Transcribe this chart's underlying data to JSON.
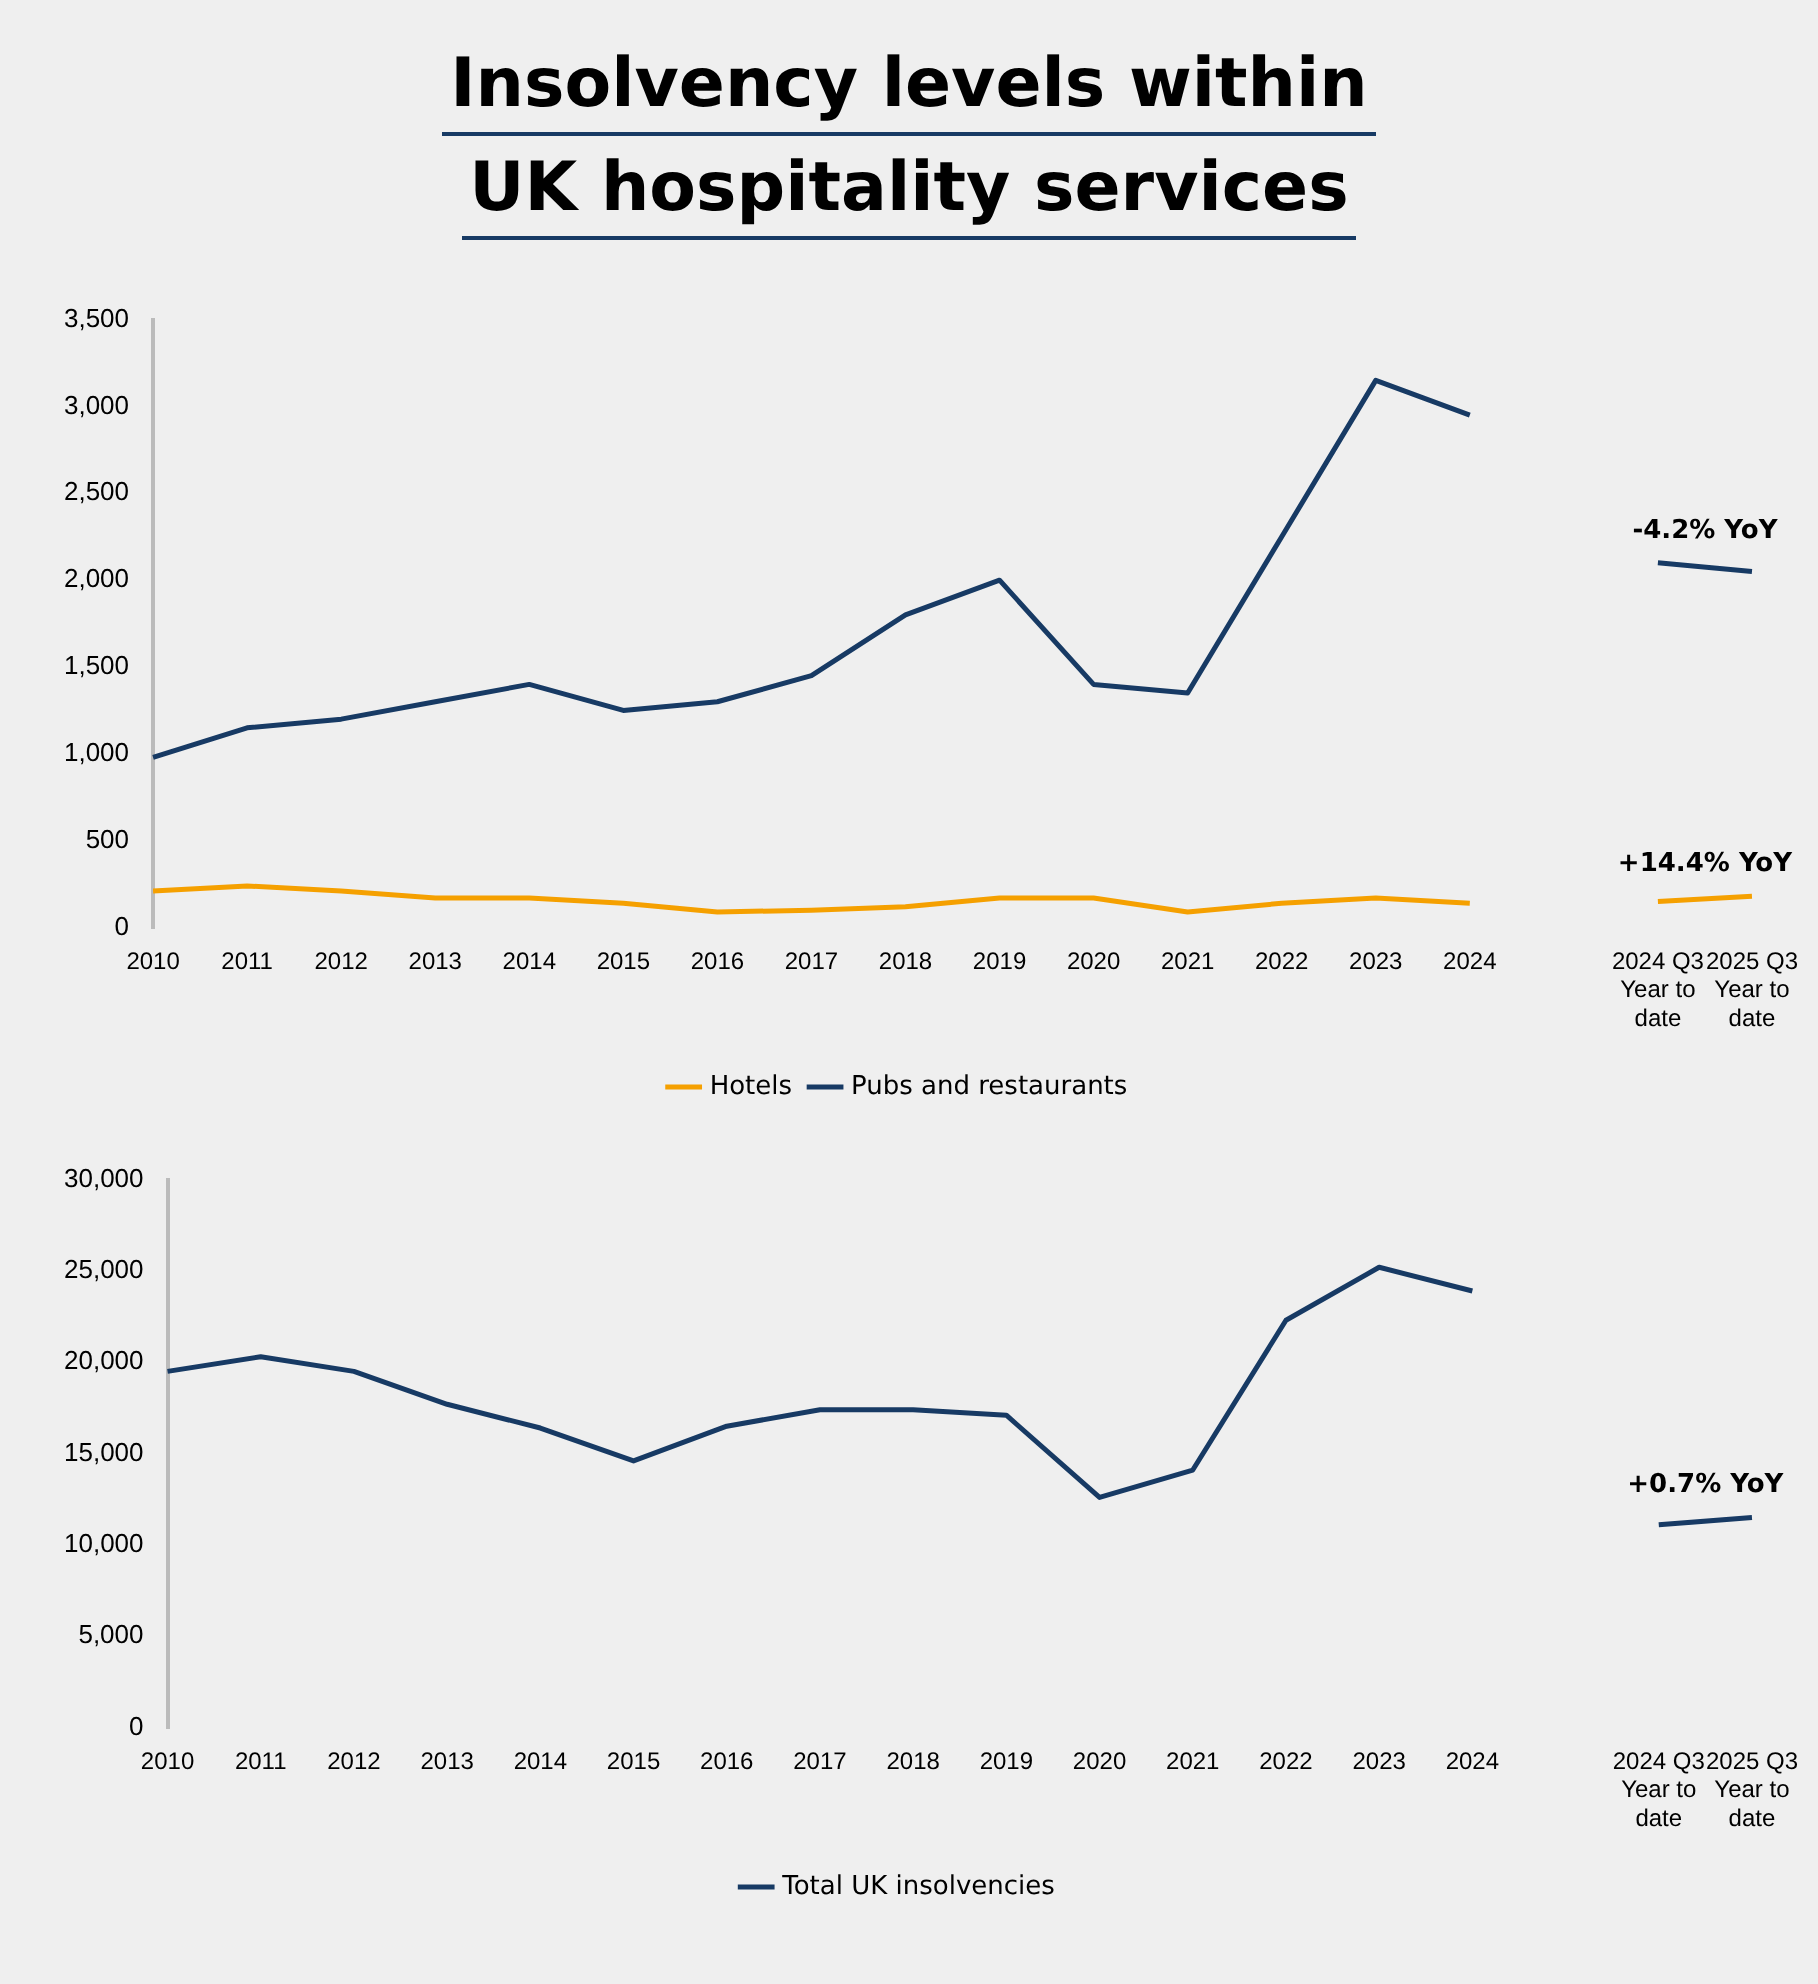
{
  "chart_data": [
    {
      "type": "line",
      "title": "Insolvency levels within UK hospitality services",
      "categories": [
        "2010",
        "2011",
        "2012",
        "2013",
        "2014",
        "2015",
        "2016",
        "2017",
        "2018",
        "2019",
        "2020",
        "2021",
        "2022",
        "2023",
        "2024",
        null,
        "2024 Q3\nYear to\ndate",
        "2025 Q3\nYear to\ndate"
      ],
      "series": [
        {
          "name": "Hotels",
          "color": "#f5a000",
          "values": [
            210,
            240,
            210,
            170,
            170,
            140,
            90,
            100,
            120,
            170,
            170,
            90,
            140,
            170,
            140,
            null,
            150,
            180
          ]
        },
        {
          "name": "Pubs and restaurants",
          "color": "#173a64",
          "values": [
            980,
            1150,
            1200,
            1300,
            1400,
            1250,
            1300,
            1450,
            1800,
            2000,
            1400,
            1350,
            2250,
            3150,
            2950,
            null,
            2100,
            2050
          ]
        }
      ],
      "ylim": [
        0,
        3500
      ],
      "yticks": [
        {
          "value": 0,
          "label": "0"
        },
        {
          "value": 500,
          "label": "500"
        },
        {
          "value": 1000,
          "label": "1,000"
        },
        {
          "value": 1500,
          "label": "1,500"
        },
        {
          "value": 2000,
          "label": "2,000"
        },
        {
          "value": 2500,
          "label": "2,500"
        },
        {
          "value": 3000,
          "label": "3,000"
        },
        {
          "value": 3500,
          "label": "3,500"
        }
      ],
      "grid": false,
      "legend": "bottom",
      "marker": "none",
      "annotations": [
        {
          "text": "-4.2% YoY",
          "x": "2024 Q3\nYear to\ndate",
          "y": 2100
        },
        {
          "text": "+14.4% YoY",
          "x": "2024 Q3\nYear to\ndate",
          "y": 180
        }
      ]
    },
    {
      "type": "line",
      "categories": [
        "2010",
        "2011",
        "2012",
        "2013",
        "2014",
        "2015",
        "2016",
        "2017",
        "2018",
        "2019",
        "2020",
        "2021",
        "2022",
        "2023",
        "2024",
        null,
        "2024 Q3\nYear to\ndate",
        "2025 Q3\nYear to\ndate"
      ],
      "series": [
        {
          "name": "Total UK insolvencies",
          "color": "#173a64",
          "values": [
            19500,
            20300,
            19500,
            17700,
            16400,
            14600,
            16500,
            17400,
            17400,
            17100,
            12600,
            14100,
            22300,
            25200,
            23900,
            null,
            11100,
            11500
          ]
        }
      ],
      "ylim": [
        0,
        30000
      ],
      "yticks": [
        {
          "value": 0,
          "label": "0"
        },
        {
          "value": 5000,
          "label": "5,000"
        },
        {
          "value": 10000,
          "label": "10,000"
        },
        {
          "value": 15000,
          "label": "15,000"
        },
        {
          "value": 20000,
          "label": "20,000"
        },
        {
          "value": 25000,
          "label": "25,000"
        },
        {
          "value": 30000,
          "label": "30,000"
        }
      ],
      "grid": false,
      "legend": "bottom",
      "marker": "none",
      "annotations": [
        {
          "text": "+0.7% YoY",
          "x": "2024 Q3\nYear to\ndate",
          "y": 11500
        }
      ]
    }
  ]
}
